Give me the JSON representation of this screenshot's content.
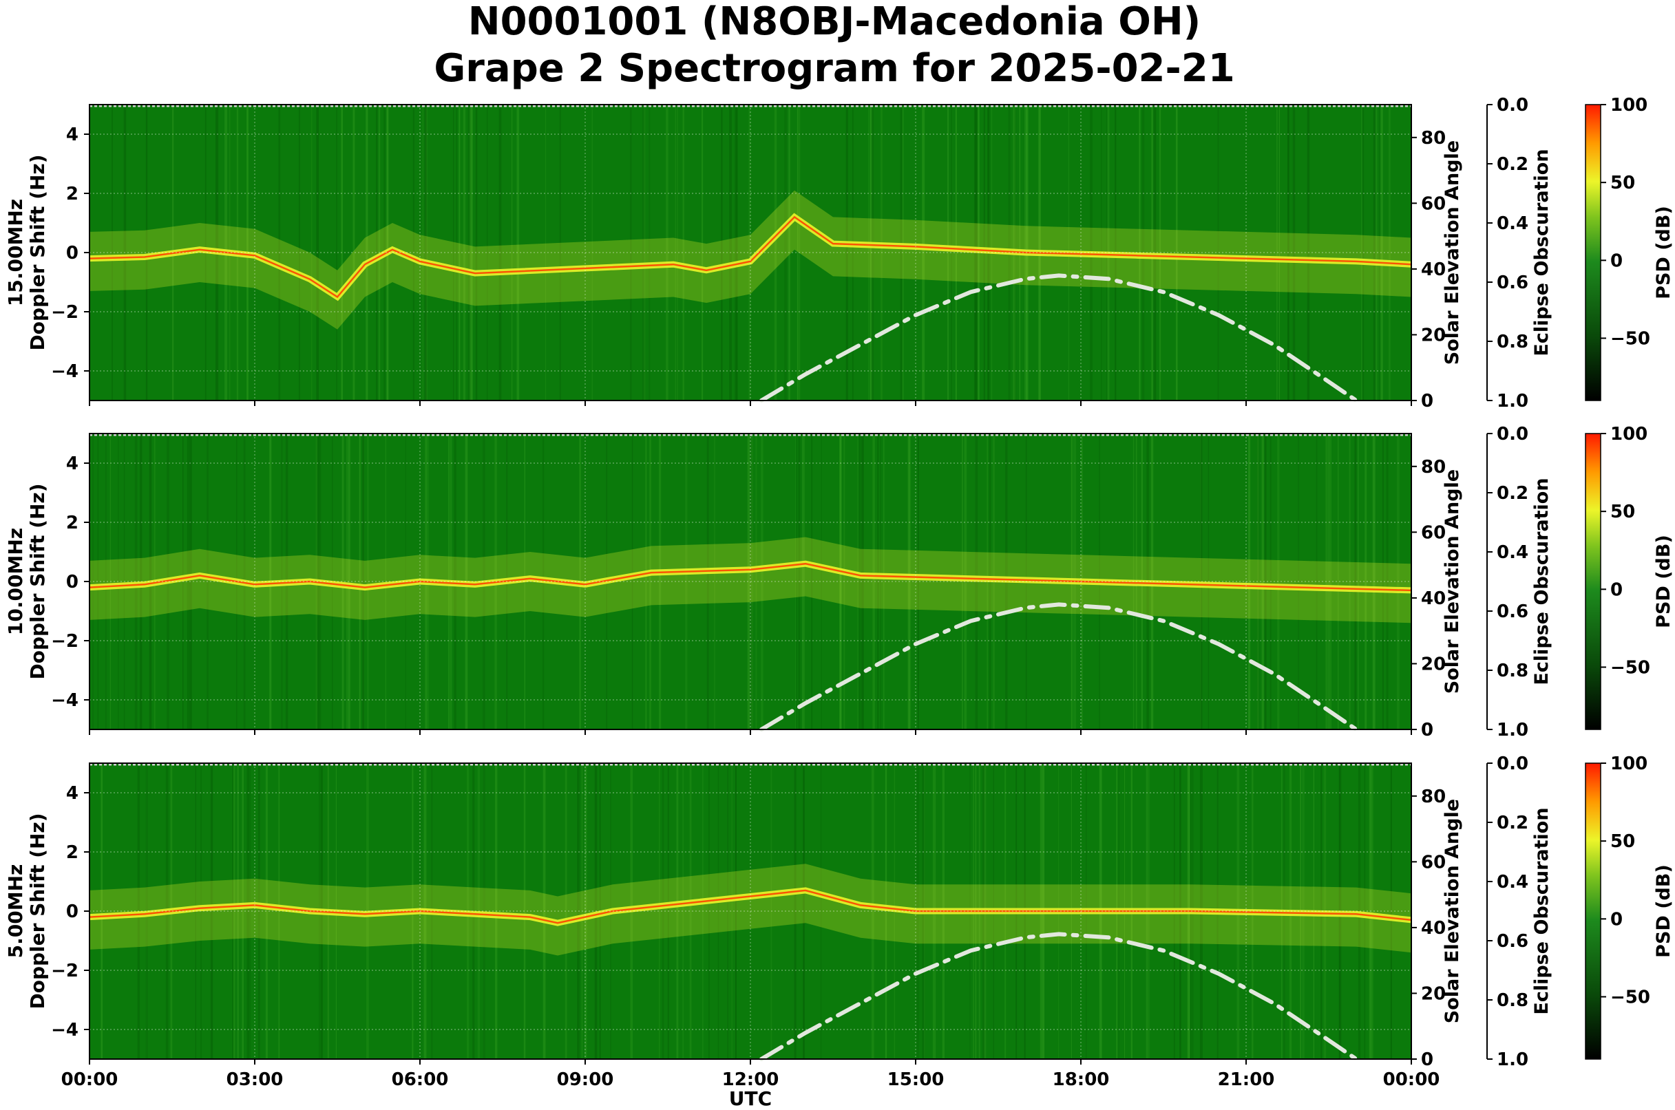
{
  "figure": {
    "title_line1": "N0001001 (N8OBJ-Macedonia OH)",
    "title_line2": "Grape 2 Spectrogram for 2025-02-21",
    "xlabel": "UTC",
    "xtick_labels": [
      "00:00",
      "03:00",
      "06:00",
      "09:00",
      "12:00",
      "15:00",
      "18:00",
      "21:00",
      "00:00"
    ]
  },
  "colors": {
    "background_green": "#0b7a0b",
    "signal_yellow": "#ecf52a",
    "trace_red": "#ff3a00",
    "elevation_curve": "#e2e8de"
  },
  "chart_data": [
    {
      "type": "heatmap",
      "frequency_label": "15.00MHz",
      "ylabel": "Doppler Shift (Hz)",
      "y_range": [
        -5,
        5
      ],
      "y_ticks": [
        -4,
        -2,
        0,
        2,
        4
      ],
      "x_range_hours": [
        0,
        24
      ],
      "grid": true,
      "right_axis_label": "Solar Elevation Angle",
      "right_axis_range": [
        0,
        90
      ],
      "right_axis_ticks": [
        0,
        20,
        40,
        60,
        80
      ],
      "eclipse_label": "Eclipse Obscuration",
      "eclipse_range": [
        1.0,
        0.0
      ],
      "eclipse_ticks": [
        "0.0",
        "0.2",
        "0.4",
        "0.6",
        "0.8",
        "1.0"
      ],
      "colorbar_label": "PSD (dB)",
      "colorbar_range": [
        -90,
        100
      ],
      "colorbar_ticks": [
        "100",
        "50",
        "0",
        "−50"
      ],
      "doppler_trace": [
        {
          "t": 0.0,
          "f": -0.2
        },
        {
          "t": 1.0,
          "f": -0.15
        },
        {
          "t": 2.0,
          "f": 0.1
        },
        {
          "t": 3.0,
          "f": -0.1
        },
        {
          "t": 4.0,
          "f": -0.9
        },
        {
          "t": 4.5,
          "f": -1.5
        },
        {
          "t": 5.0,
          "f": -0.4
        },
        {
          "t": 5.5,
          "f": 0.1
        },
        {
          "t": 6.0,
          "f": -0.3
        },
        {
          "t": 7.0,
          "f": -0.7
        },
        {
          "t": 10.6,
          "f": -0.4
        },
        {
          "t": 11.2,
          "f": -0.6
        },
        {
          "t": 12.0,
          "f": -0.3
        },
        {
          "t": 12.8,
          "f": 1.2
        },
        {
          "t": 13.5,
          "f": 0.3
        },
        {
          "t": 15.0,
          "f": 0.2
        },
        {
          "t": 17.0,
          "f": 0.0
        },
        {
          "t": 19.0,
          "f": -0.1
        },
        {
          "t": 21.0,
          "f": -0.2
        },
        {
          "t": 23.0,
          "f": -0.3
        },
        {
          "t": 24.0,
          "f": -0.4
        }
      ],
      "solar_elevation": [
        {
          "t": 12.2,
          "deg": 0
        },
        {
          "t": 13.0,
          "deg": 8
        },
        {
          "t": 14.0,
          "deg": 17
        },
        {
          "t": 15.0,
          "deg": 26
        },
        {
          "t": 16.0,
          "deg": 33
        },
        {
          "t": 17.0,
          "deg": 37
        },
        {
          "t": 17.6,
          "deg": 38
        },
        {
          "t": 18.5,
          "deg": 37
        },
        {
          "t": 19.5,
          "deg": 33
        },
        {
          "t": 20.5,
          "deg": 26
        },
        {
          "t": 21.5,
          "deg": 17
        },
        {
          "t": 22.3,
          "deg": 8
        },
        {
          "t": 23.0,
          "deg": 0
        }
      ]
    },
    {
      "type": "heatmap",
      "frequency_label": "10.00MHz",
      "ylabel": "Doppler Shift (Hz)",
      "y_range": [
        -5,
        5
      ],
      "y_ticks": [
        -4,
        -2,
        0,
        2,
        4
      ],
      "x_range_hours": [
        0,
        24
      ],
      "grid": true,
      "right_axis_label": "Solar Elevation Angle",
      "right_axis_range": [
        0,
        90
      ],
      "right_axis_ticks": [
        0,
        20,
        40,
        60,
        80
      ],
      "eclipse_label": "Eclipse Obscuration",
      "eclipse_range": [
        1.0,
        0.0
      ],
      "eclipse_ticks": [
        "0.0",
        "0.2",
        "0.4",
        "0.6",
        "0.8",
        "1.0"
      ],
      "colorbar_label": "PSD (dB)",
      "colorbar_range": [
        -90,
        100
      ],
      "colorbar_ticks": [
        "100",
        "50",
        "0",
        "−50"
      ],
      "doppler_trace": [
        {
          "t": 0.0,
          "f": -0.2
        },
        {
          "t": 1.0,
          "f": -0.1
        },
        {
          "t": 2.0,
          "f": 0.2
        },
        {
          "t": 3.0,
          "f": -0.1
        },
        {
          "t": 4.0,
          "f": 0.0
        },
        {
          "t": 5.0,
          "f": -0.2
        },
        {
          "t": 6.0,
          "f": 0.0
        },
        {
          "t": 7.0,
          "f": -0.1
        },
        {
          "t": 8.0,
          "f": 0.1
        },
        {
          "t": 9.0,
          "f": -0.1
        },
        {
          "t": 10.2,
          "f": 0.3
        },
        {
          "t": 12.0,
          "f": 0.4
        },
        {
          "t": 13.0,
          "f": 0.6
        },
        {
          "t": 14.0,
          "f": 0.2
        },
        {
          "t": 16.0,
          "f": 0.1
        },
        {
          "t": 18.0,
          "f": 0.0
        },
        {
          "t": 20.0,
          "f": -0.1
        },
        {
          "t": 22.0,
          "f": -0.2
        },
        {
          "t": 24.0,
          "f": -0.3
        }
      ],
      "solar_elevation": [
        {
          "t": 12.2,
          "deg": 0
        },
        {
          "t": 13.0,
          "deg": 8
        },
        {
          "t": 14.0,
          "deg": 17
        },
        {
          "t": 15.0,
          "deg": 26
        },
        {
          "t": 16.0,
          "deg": 33
        },
        {
          "t": 17.0,
          "deg": 37
        },
        {
          "t": 17.6,
          "deg": 38
        },
        {
          "t": 18.5,
          "deg": 37
        },
        {
          "t": 19.5,
          "deg": 33
        },
        {
          "t": 20.5,
          "deg": 26
        },
        {
          "t": 21.5,
          "deg": 17
        },
        {
          "t": 22.3,
          "deg": 8
        },
        {
          "t": 23.0,
          "deg": 0
        }
      ]
    },
    {
      "type": "heatmap",
      "frequency_label": "5.00MHz",
      "ylabel": "Doppler Shift (Hz)",
      "y_range": [
        -5,
        5
      ],
      "y_ticks": [
        -4,
        -2,
        0,
        2,
        4
      ],
      "x_range_hours": [
        0,
        24
      ],
      "grid": true,
      "right_axis_label": "Solar Elevation Angle",
      "right_axis_range": [
        0,
        90
      ],
      "right_axis_ticks": [
        0,
        20,
        40,
        60,
        80
      ],
      "eclipse_label": "Eclipse Obscuration",
      "eclipse_range": [
        1.0,
        0.0
      ],
      "eclipse_ticks": [
        "0.0",
        "0.2",
        "0.4",
        "0.6",
        "0.8",
        "1.0"
      ],
      "colorbar_label": "PSD (dB)",
      "colorbar_range": [
        -90,
        100
      ],
      "colorbar_ticks": [
        "100",
        "50",
        "0",
        "−50"
      ],
      "doppler_trace": [
        {
          "t": 0.0,
          "f": -0.2
        },
        {
          "t": 1.0,
          "f": -0.1
        },
        {
          "t": 2.0,
          "f": 0.1
        },
        {
          "t": 3.0,
          "f": 0.2
        },
        {
          "t": 4.0,
          "f": 0.0
        },
        {
          "t": 5.0,
          "f": -0.1
        },
        {
          "t": 6.0,
          "f": 0.0
        },
        {
          "t": 7.0,
          "f": -0.1
        },
        {
          "t": 8.0,
          "f": -0.2
        },
        {
          "t": 8.5,
          "f": -0.4
        },
        {
          "t": 9.5,
          "f": 0.0
        },
        {
          "t": 11.0,
          "f": 0.3
        },
        {
          "t": 12.0,
          "f": 0.5
        },
        {
          "t": 13.0,
          "f": 0.7
        },
        {
          "t": 14.0,
          "f": 0.2
        },
        {
          "t": 15.0,
          "f": 0.0
        },
        {
          "t": 20.0,
          "f": 0.0
        },
        {
          "t": 23.0,
          "f": -0.1
        },
        {
          "t": 24.0,
          "f": -0.3
        }
      ],
      "solar_elevation": [
        {
          "t": 12.2,
          "deg": 0
        },
        {
          "t": 13.0,
          "deg": 8
        },
        {
          "t": 14.0,
          "deg": 17
        },
        {
          "t": 15.0,
          "deg": 26
        },
        {
          "t": 16.0,
          "deg": 33
        },
        {
          "t": 17.0,
          "deg": 37
        },
        {
          "t": 17.6,
          "deg": 38
        },
        {
          "t": 18.5,
          "deg": 37
        },
        {
          "t": 19.5,
          "deg": 33
        },
        {
          "t": 20.5,
          "deg": 26
        },
        {
          "t": 21.5,
          "deg": 17
        },
        {
          "t": 22.3,
          "deg": 8
        },
        {
          "t": 23.0,
          "deg": 0
        }
      ]
    }
  ]
}
